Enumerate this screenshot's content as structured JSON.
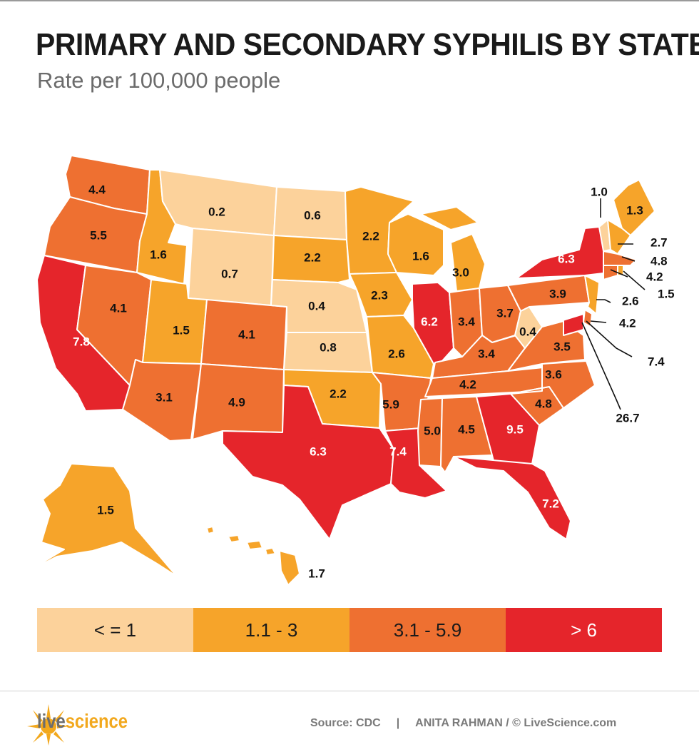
{
  "title": "PRIMARY AND SECONDARY SYPHILIS BY STATE",
  "subtitle": "Rate per 100,000 people",
  "colors": {
    "low": "#fcd29b",
    "mid": "#f6a42a",
    "high": "#ee7031",
    "top": "#e5252b",
    "border": "#ffffff"
  },
  "legend": [
    {
      "label": "< = 1",
      "color": "#fcd29b",
      "text_color": "#1a1a1a"
    },
    {
      "label": "1.1 - 3",
      "color": "#f6a42a",
      "text_color": "#1a1a1a"
    },
    {
      "label": "3.1 - 5.9",
      "color": "#ee7031",
      "text_color": "#1a1a1a"
    },
    {
      "label": "> 6",
      "color": "#e5252b",
      "text_color": "#ffffff"
    }
  ],
  "states": [
    {
      "id": "WA",
      "rate": "4.4",
      "bin": "high"
    },
    {
      "id": "OR",
      "rate": "5.5",
      "bin": "high"
    },
    {
      "id": "CA",
      "rate": "7.8",
      "bin": "top"
    },
    {
      "id": "NV",
      "rate": "4.1",
      "bin": "high"
    },
    {
      "id": "ID",
      "rate": "1.6",
      "bin": "mid"
    },
    {
      "id": "MT",
      "rate": "0.2",
      "bin": "low"
    },
    {
      "id": "WY",
      "rate": "0.7",
      "bin": "low"
    },
    {
      "id": "UT",
      "rate": "1.5",
      "bin": "mid"
    },
    {
      "id": "AZ",
      "rate": "3.1",
      "bin": "high"
    },
    {
      "id": "CO",
      "rate": "4.1",
      "bin": "high"
    },
    {
      "id": "NM",
      "rate": "4.9",
      "bin": "high"
    },
    {
      "id": "ND",
      "rate": "0.6",
      "bin": "low"
    },
    {
      "id": "SD",
      "rate": "2.2",
      "bin": "mid"
    },
    {
      "id": "NE",
      "rate": "0.4",
      "bin": "low"
    },
    {
      "id": "KS",
      "rate": "0.8",
      "bin": "low"
    },
    {
      "id": "OK",
      "rate": "2.2",
      "bin": "mid"
    },
    {
      "id": "TX",
      "rate": "6.3",
      "bin": "top"
    },
    {
      "id": "MN",
      "rate": "2.2",
      "bin": "mid"
    },
    {
      "id": "IA",
      "rate": "2.3",
      "bin": "mid"
    },
    {
      "id": "MO",
      "rate": "2.6",
      "bin": "mid"
    },
    {
      "id": "AR",
      "rate": "5.9",
      "bin": "high"
    },
    {
      "id": "LA",
      "rate": "7.4",
      "bin": "top"
    },
    {
      "id": "WI",
      "rate": "1.6",
      "bin": "mid"
    },
    {
      "id": "IL",
      "rate": "6.2",
      "bin": "top"
    },
    {
      "id": "MI",
      "rate": "3.0",
      "bin": "mid"
    },
    {
      "id": "IN",
      "rate": "3.4",
      "bin": "high"
    },
    {
      "id": "OH",
      "rate": "3.7",
      "bin": "high"
    },
    {
      "id": "KY",
      "rate": "3.4",
      "bin": "high"
    },
    {
      "id": "TN",
      "rate": "4.2",
      "bin": "high"
    },
    {
      "id": "MS",
      "rate": "5.0",
      "bin": "high"
    },
    {
      "id": "AL",
      "rate": "4.5",
      "bin": "high"
    },
    {
      "id": "GA",
      "rate": "9.5",
      "bin": "top"
    },
    {
      "id": "FL",
      "rate": "7.2",
      "bin": "top"
    },
    {
      "id": "SC",
      "rate": "4.8",
      "bin": "high"
    },
    {
      "id": "NC",
      "rate": "3.6",
      "bin": "high"
    },
    {
      "id": "VA",
      "rate": "3.5",
      "bin": "high"
    },
    {
      "id": "WV",
      "rate": "0.4",
      "bin": "low"
    },
    {
      "id": "PA",
      "rate": "3.9",
      "bin": "high"
    },
    {
      "id": "NY",
      "rate": "6.3",
      "bin": "top"
    },
    {
      "id": "ME",
      "rate": "1.3",
      "bin": "mid"
    },
    {
      "id": "VT",
      "rate": "1.0",
      "bin": "low"
    },
    {
      "id": "NH",
      "rate": "2.7",
      "bin": "mid"
    },
    {
      "id": "MA",
      "rate": "4.8",
      "bin": "high"
    },
    {
      "id": "CT",
      "rate": "4.2",
      "bin": "high"
    },
    {
      "id": "RI",
      "rate": "1.5",
      "bin": "mid"
    },
    {
      "id": "NJ",
      "rate": "2.6",
      "bin": "mid"
    },
    {
      "id": "DE",
      "rate": "4.2",
      "bin": "high"
    },
    {
      "id": "MD",
      "rate": "7.4",
      "bin": "top"
    },
    {
      "id": "DC",
      "rate": "26.7",
      "bin": "top"
    },
    {
      "id": "AK",
      "rate": "1.5",
      "bin": "mid"
    },
    {
      "id": "HI",
      "rate": "1.7",
      "bin": "mid"
    }
  ],
  "footer": {
    "logo_live": "live",
    "logo_science": "science",
    "source": "Source: CDC",
    "separator": "|",
    "credit": "ANITA RAHMAN / © LiveScience.com"
  }
}
